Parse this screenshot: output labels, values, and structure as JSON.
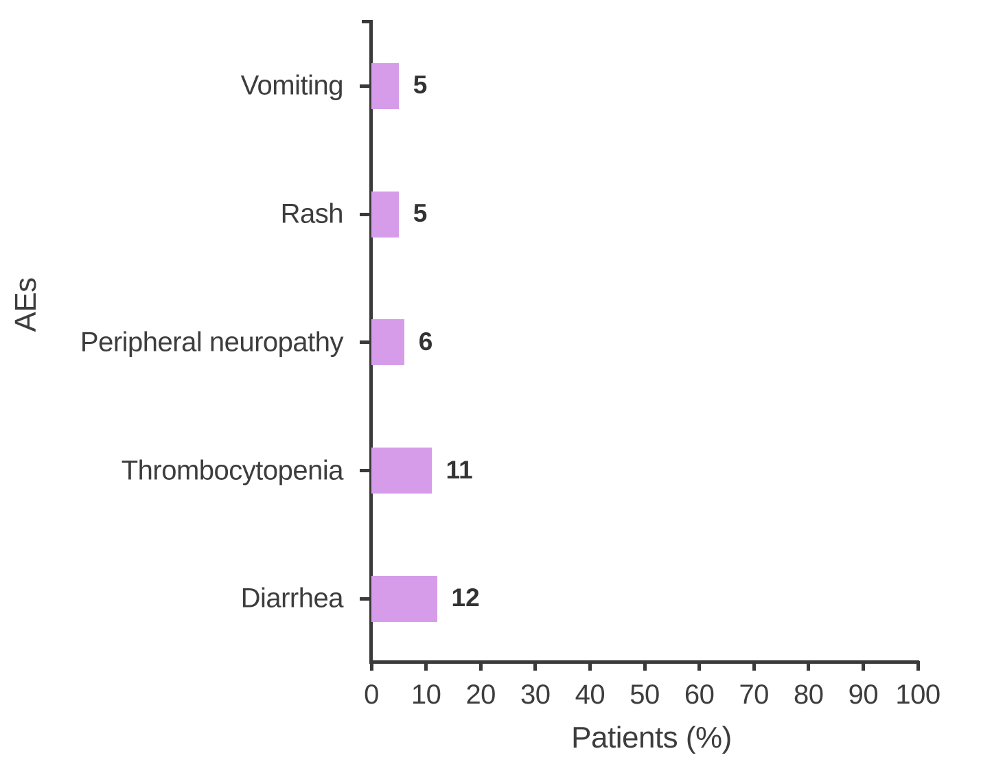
{
  "chart_data": {
    "type": "bar",
    "orientation": "horizontal",
    "title": "",
    "xlabel": "Patients (%)",
    "ylabel": "AEs",
    "categories": [
      "Vomiting",
      "Rash",
      "Peripheral neuropathy",
      "Thrombocytopenia",
      "Diarrhea"
    ],
    "values": [
      5,
      5,
      6,
      11,
      12
    ],
    "value_labels": [
      "5",
      "5",
      "6",
      "11",
      "12"
    ],
    "xlim": [
      0,
      100
    ],
    "xticks": [
      0,
      10,
      20,
      30,
      40,
      50,
      60,
      70,
      80,
      90,
      100
    ],
    "xtick_labels": [
      "0",
      "10",
      "20",
      "30",
      "40",
      "50",
      "60",
      "70",
      "80",
      "90",
      "100"
    ],
    "grid": false,
    "legend": false,
    "colors": {
      "bar": "#d69ce9",
      "axis": "#3a3a3a",
      "text": "#3d3d3d",
      "value_label": "#333333",
      "background": "#ffffff"
    }
  }
}
